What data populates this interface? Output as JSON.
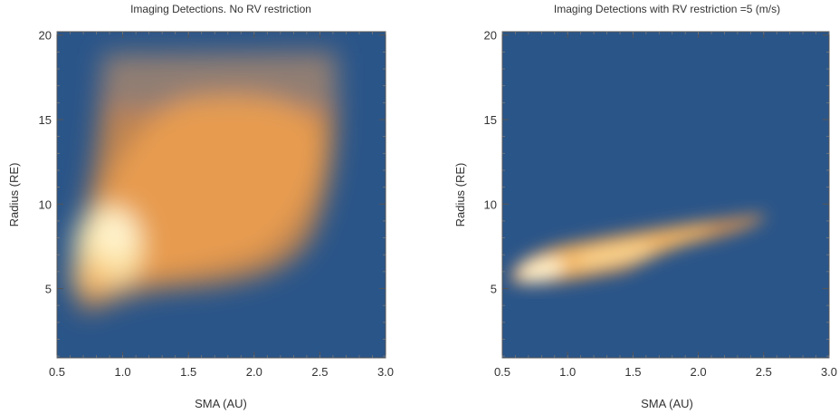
{
  "chart_data": [
    {
      "type": "heatmap",
      "title": "Imaging Detections. No RV restriction",
      "xlabel": "SMA (AU)",
      "ylabel": "Radius (RE)",
      "xlim": [
        0.5,
        3.0
      ],
      "ylim": [
        0.9,
        20.2
      ],
      "xticks": [
        0.5,
        1.0,
        1.5,
        2.0,
        2.5,
        3.0
      ],
      "xtick_labels": [
        "0.5",
        "1.0",
        "1.5",
        "2.0",
        "2.5",
        "3.0"
      ],
      "yticks": [
        5,
        10,
        15,
        20
      ],
      "ytick_labels": [
        "5",
        "10",
        "15",
        "20"
      ],
      "colormap": {
        "low": "#2a5589",
        "mid": "#e39c45",
        "high": "#fdf1c0"
      },
      "density_peaks": [
        {
          "x": 0.95,
          "y": 8.0,
          "level": 1.0
        },
        {
          "x": 1.25,
          "y": 9.5,
          "level": 0.8
        },
        {
          "x": 0.8,
          "y": 6.0,
          "level": 0.75
        },
        {
          "x": 1.7,
          "y": 12.5,
          "level": 0.6
        },
        {
          "x": 2.1,
          "y": 13.0,
          "level": 0.55
        },
        {
          "x": 1.45,
          "y": 14.5,
          "level": 0.45
        },
        {
          "x": 2.35,
          "y": 15.5,
          "level": 0.4
        },
        {
          "x": 1.7,
          "y": 17.5,
          "level": 0.28
        }
      ]
    },
    {
      "type": "heatmap",
      "title": "Imaging Detections with RV restriction =5 (m/s)",
      "xlabel": "SMA (AU)",
      "ylabel": "Radius (RE)",
      "xlim": [
        0.5,
        3.0
      ],
      "ylim": [
        0.9,
        20.2
      ],
      "xticks": [
        0.5,
        1.0,
        1.5,
        2.0,
        2.5,
        3.0
      ],
      "xtick_labels": [
        "0.5",
        "1.0",
        "1.5",
        "2.0",
        "2.5",
        "3.0"
      ],
      "yticks": [
        5,
        10,
        15,
        20
      ],
      "ytick_labels": [
        "5",
        "10",
        "15",
        "20"
      ],
      "colormap": {
        "low": "#2a5589",
        "mid": "#e39c45",
        "high": "#fdf1c0"
      },
      "density_peaks": [
        {
          "x": 0.82,
          "y": 6.1,
          "level": 1.0
        },
        {
          "x": 1.15,
          "y": 6.8,
          "level": 0.85
        },
        {
          "x": 1.55,
          "y": 7.5,
          "level": 0.7
        },
        {
          "x": 1.9,
          "y": 8.1,
          "level": 0.55
        },
        {
          "x": 2.25,
          "y": 8.8,
          "level": 0.2
        }
      ]
    }
  ]
}
